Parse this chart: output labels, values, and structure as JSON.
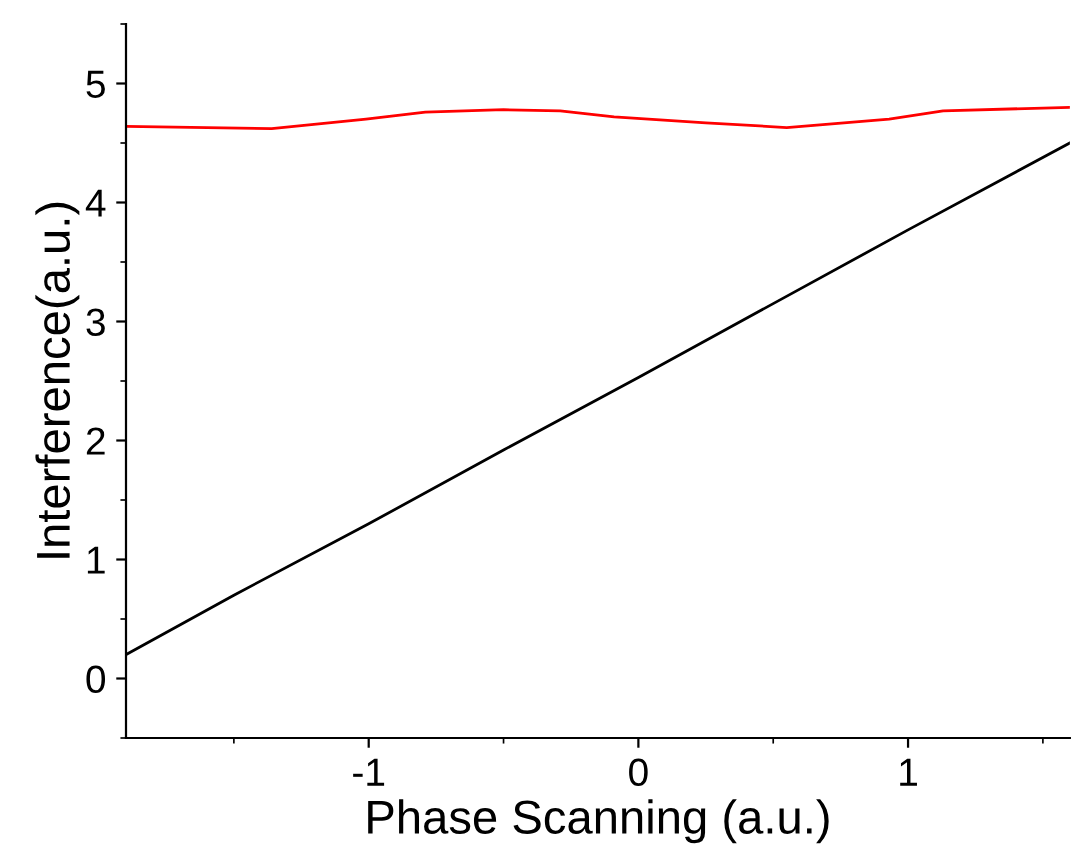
{
  "chart_data": {
    "type": "line",
    "xlabel": "Phase Scanning (a.u.)",
    "ylabel": "Interference(a.u.)",
    "xlim": [
      -1.9,
      1.6
    ],
    "xticks": [
      -1,
      0,
      1
    ],
    "ylim": [
      -0.5,
      5.5
    ],
    "yticks": [
      0,
      1,
      2,
      3,
      4,
      5
    ],
    "grid": false,
    "legend": false,
    "series": [
      {
        "color": "#ff0000",
        "x": [
          -1.9,
          -1.6,
          -1.36,
          -1.01,
          -0.79,
          -0.5,
          -0.29,
          -0.09,
          0.25,
          0.55,
          0.93,
          1.13,
          1.6
        ],
        "values": [
          4.64,
          4.63,
          4.62,
          4.7,
          4.76,
          4.78,
          4.77,
          4.72,
          4.67,
          4.63,
          4.7,
          4.77,
          4.8
        ]
      },
      {
        "color": "#000000",
        "x": [
          -1.9,
          -1.5,
          -1,
          -0.5,
          0,
          0.5,
          1,
          1.6
        ],
        "values": [
          0.2,
          0.7,
          1.3,
          1.92,
          2.53,
          3.15,
          3.77,
          4.5
        ]
      }
    ]
  }
}
